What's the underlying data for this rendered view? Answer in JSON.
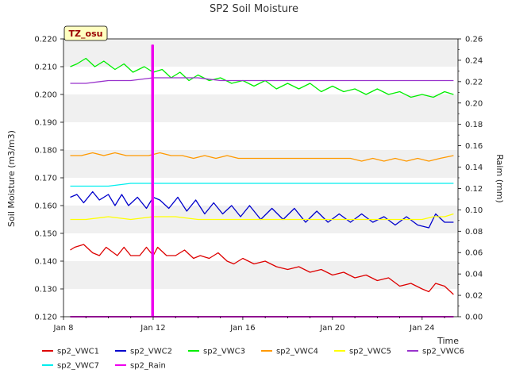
{
  "chart_data": {
    "type": "line",
    "title": "SP2 Soil Moisture",
    "xlabel": "Time",
    "ylabel": "Soil Moisture (m3/m3)",
    "y2label": "Raim (mm)",
    "badge": "TZ_osu",
    "xlim": [
      8,
      25.6
    ],
    "ylim": [
      0.12,
      0.22
    ],
    "y2lim": [
      0,
      0.26
    ],
    "x_ticks": [
      {
        "value": 8,
        "label": "Jan 8"
      },
      {
        "value": 12,
        "label": "Jan 12"
      },
      {
        "value": 16,
        "label": "Jan 16"
      },
      {
        "value": 20,
        "label": "Jan 20"
      },
      {
        "value": 24,
        "label": "Jan 24"
      }
    ],
    "y_ticks": [
      "0.120",
      "0.130",
      "0.140",
      "0.150",
      "0.160",
      "0.170",
      "0.180",
      "0.190",
      "0.200",
      "0.210",
      "0.220"
    ],
    "y2_ticks": [
      "0.00",
      "0.02",
      "0.04",
      "0.06",
      "0.08",
      "0.10",
      "0.12",
      "0.14",
      "0.16",
      "0.18",
      "0.20",
      "0.22",
      "0.24",
      "0.26"
    ],
    "grid": "horizontal bands",
    "legend_position": "bottom",
    "series": [
      {
        "name": "sp2_VWC1",
        "color": "#dd0000",
        "axis": "left",
        "x": [
          8.3,
          8.5,
          8.9,
          9.3,
          9.6,
          9.9,
          10.4,
          10.7,
          11.0,
          11.4,
          11.7,
          12.0,
          12.2,
          12.6,
          13.0,
          13.4,
          13.8,
          14.1,
          14.5,
          14.9,
          15.3,
          15.6,
          16.0,
          16.5,
          17.0,
          17.5,
          18.0,
          18.5,
          19.0,
          19.5,
          20.0,
          20.5,
          21.0,
          21.5,
          22.0,
          22.5,
          23.0,
          23.5,
          24.0,
          24.3,
          24.6,
          25.0,
          25.4
        ],
        "y": [
          0.144,
          0.145,
          0.146,
          0.143,
          0.142,
          0.145,
          0.142,
          0.145,
          0.142,
          0.142,
          0.145,
          0.142,
          0.145,
          0.142,
          0.142,
          0.144,
          0.141,
          0.142,
          0.141,
          0.143,
          0.14,
          0.139,
          0.141,
          0.139,
          0.14,
          0.138,
          0.137,
          0.138,
          0.136,
          0.137,
          0.135,
          0.136,
          0.134,
          0.135,
          0.133,
          0.134,
          0.131,
          0.132,
          0.13,
          0.129,
          0.132,
          0.131,
          0.128
        ]
      },
      {
        "name": "sp2_VWC2",
        "color": "#0000cc",
        "axis": "left",
        "x": [
          8.3,
          8.6,
          8.9,
          9.3,
          9.6,
          10.0,
          10.3,
          10.6,
          10.9,
          11.3,
          11.7,
          12.0,
          12.3,
          12.7,
          13.1,
          13.5,
          13.9,
          14.3,
          14.7,
          15.1,
          15.5,
          15.9,
          16.3,
          16.8,
          17.3,
          17.8,
          18.3,
          18.8,
          19.3,
          19.8,
          20.3,
          20.8,
          21.3,
          21.8,
          22.3,
          22.8,
          23.3,
          23.8,
          24.3,
          24.6,
          25.0,
          25.4
        ],
        "y": [
          0.163,
          0.164,
          0.161,
          0.165,
          0.162,
          0.164,
          0.16,
          0.164,
          0.16,
          0.163,
          0.159,
          0.163,
          0.162,
          0.159,
          0.163,
          0.158,
          0.162,
          0.157,
          0.161,
          0.157,
          0.16,
          0.156,
          0.16,
          0.155,
          0.159,
          0.155,
          0.159,
          0.154,
          0.158,
          0.154,
          0.157,
          0.154,
          0.157,
          0.154,
          0.156,
          0.153,
          0.156,
          0.153,
          0.152,
          0.157,
          0.154,
          0.154
        ]
      },
      {
        "name": "sp2_VWC3",
        "color": "#00ee00",
        "axis": "left",
        "x": [
          8.3,
          8.6,
          9.0,
          9.4,
          9.8,
          10.3,
          10.7,
          11.1,
          11.6,
          12.0,
          12.4,
          12.8,
          13.2,
          13.6,
          14.0,
          14.5,
          15.0,
          15.5,
          16.0,
          16.5,
          17.0,
          17.5,
          18.0,
          18.5,
          19.0,
          19.5,
          20.0,
          20.5,
          21.0,
          21.5,
          22.0,
          22.5,
          23.0,
          23.5,
          24.0,
          24.5,
          25.0,
          25.4
        ],
        "y": [
          0.21,
          0.211,
          0.213,
          0.21,
          0.212,
          0.209,
          0.211,
          0.208,
          0.21,
          0.208,
          0.209,
          0.206,
          0.208,
          0.205,
          0.207,
          0.205,
          0.206,
          0.204,
          0.205,
          0.203,
          0.205,
          0.202,
          0.204,
          0.202,
          0.204,
          0.201,
          0.203,
          0.201,
          0.202,
          0.2,
          0.202,
          0.2,
          0.201,
          0.199,
          0.2,
          0.199,
          0.201,
          0.2
        ]
      },
      {
        "name": "sp2_VWC4",
        "color": "#ff9900",
        "axis": "left",
        "x": [
          8.3,
          8.8,
          9.3,
          9.8,
          10.3,
          10.8,
          11.3,
          11.8,
          12.3,
          12.8,
          13.3,
          13.8,
          14.3,
          14.8,
          15.3,
          15.8,
          16.3,
          16.8,
          17.3,
          17.8,
          18.3,
          18.8,
          19.3,
          19.8,
          20.3,
          20.8,
          21.3,
          21.8,
          22.3,
          22.8,
          23.3,
          23.8,
          24.3,
          24.8,
          25.4
        ],
        "y": [
          0.178,
          0.178,
          0.179,
          0.178,
          0.179,
          0.178,
          0.178,
          0.178,
          0.179,
          0.178,
          0.178,
          0.177,
          0.178,
          0.177,
          0.178,
          0.177,
          0.177,
          0.177,
          0.177,
          0.177,
          0.177,
          0.177,
          0.177,
          0.177,
          0.177,
          0.177,
          0.176,
          0.177,
          0.176,
          0.177,
          0.176,
          0.177,
          0.176,
          0.177,
          0.178
        ]
      },
      {
        "name": "sp2_VWC5",
        "color": "#ffff00",
        "axis": "left",
        "x": [
          8.3,
          9.0,
          10.0,
          11.0,
          12.0,
          13.0,
          14.0,
          15.0,
          16.0,
          17.0,
          18.0,
          19.0,
          20.0,
          21.0,
          22.0,
          23.0,
          24.0,
          24.5,
          25.0,
          25.4
        ],
        "y": [
          0.155,
          0.155,
          0.156,
          0.155,
          0.156,
          0.156,
          0.155,
          0.155,
          0.155,
          0.155,
          0.155,
          0.155,
          0.155,
          0.155,
          0.155,
          0.155,
          0.155,
          0.156,
          0.156,
          0.157
        ]
      },
      {
        "name": "sp2_VWC6",
        "color": "#9933cc",
        "axis": "left",
        "x": [
          8.3,
          9.0,
          10.0,
          11.0,
          12.0,
          13.0,
          14.0,
          15.0,
          16.0,
          17.0,
          18.0,
          19.0,
          20.0,
          21.0,
          22.0,
          23.0,
          24.0,
          25.0,
          25.4
        ],
        "y": [
          0.204,
          0.204,
          0.205,
          0.205,
          0.206,
          0.206,
          0.206,
          0.205,
          0.205,
          0.205,
          0.205,
          0.205,
          0.205,
          0.205,
          0.205,
          0.205,
          0.205,
          0.205,
          0.205
        ]
      },
      {
        "name": "sp2_VWC7",
        "color": "#00eeee",
        "axis": "left",
        "x": [
          8.3,
          9.0,
          10.0,
          11.0,
          12.0,
          14.0,
          16.0,
          18.0,
          20.0,
          22.0,
          24.0,
          25.4
        ],
        "y": [
          0.167,
          0.167,
          0.167,
          0.168,
          0.168,
          0.168,
          0.168,
          0.168,
          0.168,
          0.168,
          0.168,
          0.168
        ]
      },
      {
        "name": "sp2_Rain",
        "color": "#ee00ee",
        "axis": "right",
        "x": [
          8.3,
          11.95,
          11.95,
          12.0,
          12.0,
          25.4
        ],
        "y": [
          0,
          0,
          0.254,
          0.254,
          0,
          0
        ]
      }
    ]
  }
}
